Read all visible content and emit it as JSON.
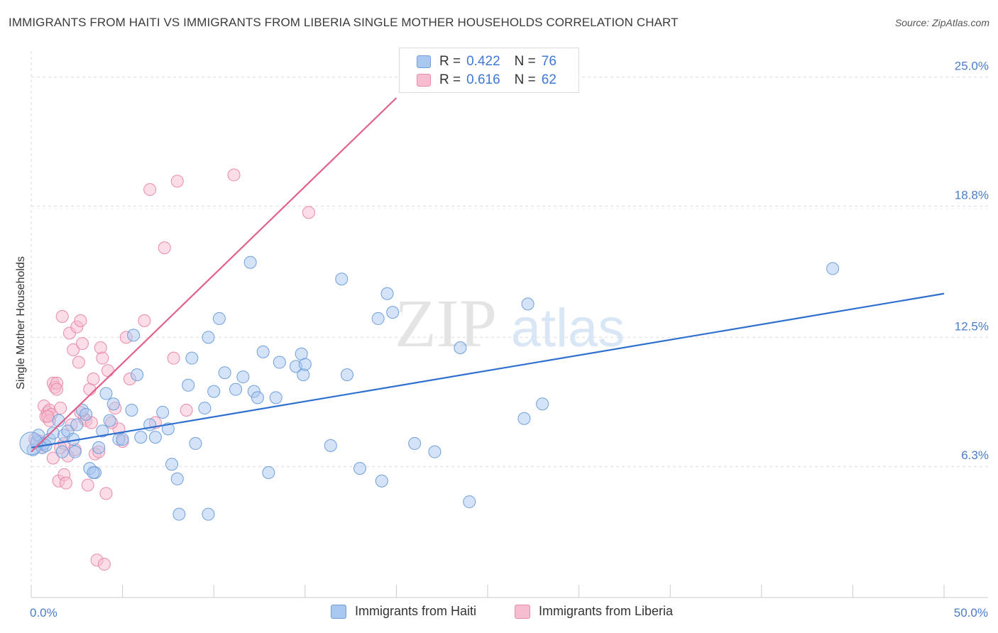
{
  "title": "IMMIGRANTS FROM HAITI VS IMMIGRANTS FROM LIBERIA SINGLE MOTHER HOUSEHOLDS CORRELATION CHART",
  "source": "Source: ZipAtlas.com",
  "watermark": {
    "zip": "ZIP",
    "atlas": "atlas"
  },
  "legend": {
    "rows": [
      {
        "r_label": "R =",
        "r_value": "0.422",
        "n_label": "N =",
        "n_value": "76"
      },
      {
        "r_label": "R =",
        "r_value": "0.616",
        "n_label": "N =",
        "n_value": "62"
      }
    ]
  },
  "bottom_legend": {
    "haiti": "Immigrants from Haiti",
    "liberia": "Immigrants from Liberia"
  },
  "colors": {
    "haiti_fill": "#a9c8f0",
    "haiti_stroke": "#6f9fdc",
    "haiti_line": "#2f6fcf",
    "liberia_fill": "#f6bcd0",
    "liberia_stroke": "#e98aab",
    "liberia_line": "#e0608c",
    "tick": "#4a7cc9",
    "grid": "#dedede"
  },
  "chart_data": {
    "type": "scatter",
    "xlabel": "",
    "ylabel": "Single Mother Households",
    "xlim": [
      0,
      50
    ],
    "ylim": [
      0,
      26.25
    ],
    "x_tick_labels": [
      {
        "value": 0,
        "label": "0.0%"
      },
      {
        "value": 50,
        "label": "50.0%"
      }
    ],
    "y_ticks": [
      {
        "value": 6.3,
        "label": "6.3%"
      },
      {
        "value": 12.5,
        "label": "12.5%"
      },
      {
        "value": 18.8,
        "label": "18.8%"
      },
      {
        "value": 25.0,
        "label": "25.0%"
      }
    ],
    "series": [
      {
        "name": "Immigrants from Haiti",
        "R": 0.422,
        "N": 76,
        "trend": {
          "x": [
            0,
            50
          ],
          "y": [
            7.2,
            14.6
          ]
        },
        "points": [
          [
            0.1,
            7.1
          ],
          [
            0.3,
            7.5
          ],
          [
            0.4,
            7.8
          ],
          [
            0.6,
            7.2
          ],
          [
            0.7,
            7.4
          ],
          [
            0.8,
            7.3
          ],
          [
            1.0,
            7.6
          ],
          [
            1.2,
            7.9
          ],
          [
            1.5,
            8.5
          ],
          [
            1.7,
            7.0
          ],
          [
            1.8,
            7.8
          ],
          [
            2.0,
            8.0
          ],
          [
            2.3,
            7.6
          ],
          [
            2.4,
            7.0
          ],
          [
            2.8,
            9.0
          ],
          [
            3.0,
            8.8
          ],
          [
            3.2,
            6.2
          ],
          [
            3.5,
            6.0
          ],
          [
            3.7,
            7.2
          ],
          [
            3.9,
            8.0
          ],
          [
            4.1,
            9.8
          ],
          [
            4.3,
            8.5
          ],
          [
            4.5,
            9.3
          ],
          [
            4.8,
            7.6
          ],
          [
            5.5,
            9.0
          ],
          [
            5.6,
            12.6
          ],
          [
            5.8,
            10.7
          ],
          [
            6.5,
            8.3
          ],
          [
            6.8,
            7.7
          ],
          [
            7.2,
            8.9
          ],
          [
            7.5,
            8.1
          ],
          [
            7.7,
            6.4
          ],
          [
            8.0,
            5.7
          ],
          [
            8.1,
            4.0
          ],
          [
            8.6,
            10.2
          ],
          [
            8.8,
            11.5
          ],
          [
            9.0,
            7.4
          ],
          [
            9.5,
            9.1
          ],
          [
            9.7,
            12.5
          ],
          [
            10.0,
            9.9
          ],
          [
            10.3,
            13.4
          ],
          [
            10.6,
            10.8
          ],
          [
            11.2,
            10.0
          ],
          [
            11.6,
            10.6
          ],
          [
            12.0,
            16.1
          ],
          [
            12.2,
            9.9
          ],
          [
            12.4,
            9.6
          ],
          [
            12.7,
            11.8
          ],
          [
            13.0,
            6.0
          ],
          [
            13.4,
            9.6
          ],
          [
            13.6,
            11.3
          ],
          [
            14.5,
            11.1
          ],
          [
            14.8,
            11.7
          ],
          [
            14.9,
            10.7
          ],
          [
            15.0,
            11.2
          ],
          [
            16.4,
            7.3
          ],
          [
            17.0,
            15.3
          ],
          [
            17.3,
            10.7
          ],
          [
            18.0,
            6.2
          ],
          [
            19.0,
            13.4
          ],
          [
            19.2,
            5.6
          ],
          [
            19.5,
            14.6
          ],
          [
            19.8,
            13.7
          ],
          [
            21.0,
            7.4
          ],
          [
            22.1,
            7.0
          ],
          [
            23.5,
            12.0
          ],
          [
            24.0,
            4.6
          ],
          [
            27.0,
            8.6
          ],
          [
            27.2,
            14.1
          ],
          [
            28.0,
            9.3
          ],
          [
            43.9,
            15.8
          ],
          [
            9.7,
            4.0
          ],
          [
            3.4,
            6.0
          ],
          [
            5.0,
            7.6
          ],
          [
            2.5,
            8.3
          ],
          [
            6.0,
            7.7
          ]
        ]
      },
      {
        "name": "Immigrants from Liberia",
        "R": 0.616,
        "N": 62,
        "trend": {
          "x": [
            0,
            20
          ],
          "y": [
            7.0,
            24.0
          ]
        },
        "points": [
          [
            0.2,
            7.6
          ],
          [
            0.3,
            7.4
          ],
          [
            0.5,
            7.5
          ],
          [
            0.7,
            9.2
          ],
          [
            0.8,
            8.7
          ],
          [
            0.9,
            8.9
          ],
          [
            1.0,
            9.0
          ],
          [
            1.1,
            8.8
          ],
          [
            1.2,
            10.3
          ],
          [
            1.3,
            10.1
          ],
          [
            1.4,
            10.3
          ],
          [
            1.5,
            5.6
          ],
          [
            1.6,
            7.2
          ],
          [
            1.7,
            13.5
          ],
          [
            1.8,
            5.9
          ],
          [
            1.9,
            5.5
          ],
          [
            2.0,
            6.8
          ],
          [
            2.1,
            12.7
          ],
          [
            2.3,
            11.9
          ],
          [
            2.4,
            7.1
          ],
          [
            2.5,
            13.0
          ],
          [
            2.6,
            11.3
          ],
          [
            2.7,
            13.3
          ],
          [
            2.8,
            12.2
          ],
          [
            2.9,
            8.6
          ],
          [
            3.0,
            8.5
          ],
          [
            3.1,
            5.4
          ],
          [
            3.2,
            10.0
          ],
          [
            3.3,
            8.4
          ],
          [
            3.4,
            10.5
          ],
          [
            3.5,
            6.9
          ],
          [
            3.6,
            1.8
          ],
          [
            3.8,
            12.0
          ],
          [
            3.9,
            11.5
          ],
          [
            4.0,
            1.6
          ],
          [
            4.1,
            5.0
          ],
          [
            4.2,
            10.9
          ],
          [
            4.6,
            9.1
          ],
          [
            4.8,
            8.1
          ],
          [
            5.0,
            7.5
          ],
          [
            5.2,
            12.5
          ],
          [
            5.4,
            10.5
          ],
          [
            6.2,
            13.3
          ],
          [
            6.5,
            19.6
          ],
          [
            6.8,
            8.4
          ],
          [
            7.3,
            16.8
          ],
          [
            7.8,
            11.5
          ],
          [
            8.0,
            20.0
          ],
          [
            8.5,
            9.0
          ],
          [
            11.1,
            20.3
          ],
          [
            15.2,
            18.5
          ],
          [
            1.0,
            8.5
          ],
          [
            1.2,
            6.7
          ],
          [
            0.6,
            7.2
          ],
          [
            2.2,
            8.3
          ],
          [
            1.4,
            10.0
          ],
          [
            0.9,
            8.7
          ],
          [
            1.6,
            9.1
          ],
          [
            1.8,
            7.4
          ],
          [
            2.7,
            8.9
          ],
          [
            3.7,
            7.0
          ],
          [
            4.4,
            8.4
          ]
        ]
      }
    ]
  }
}
